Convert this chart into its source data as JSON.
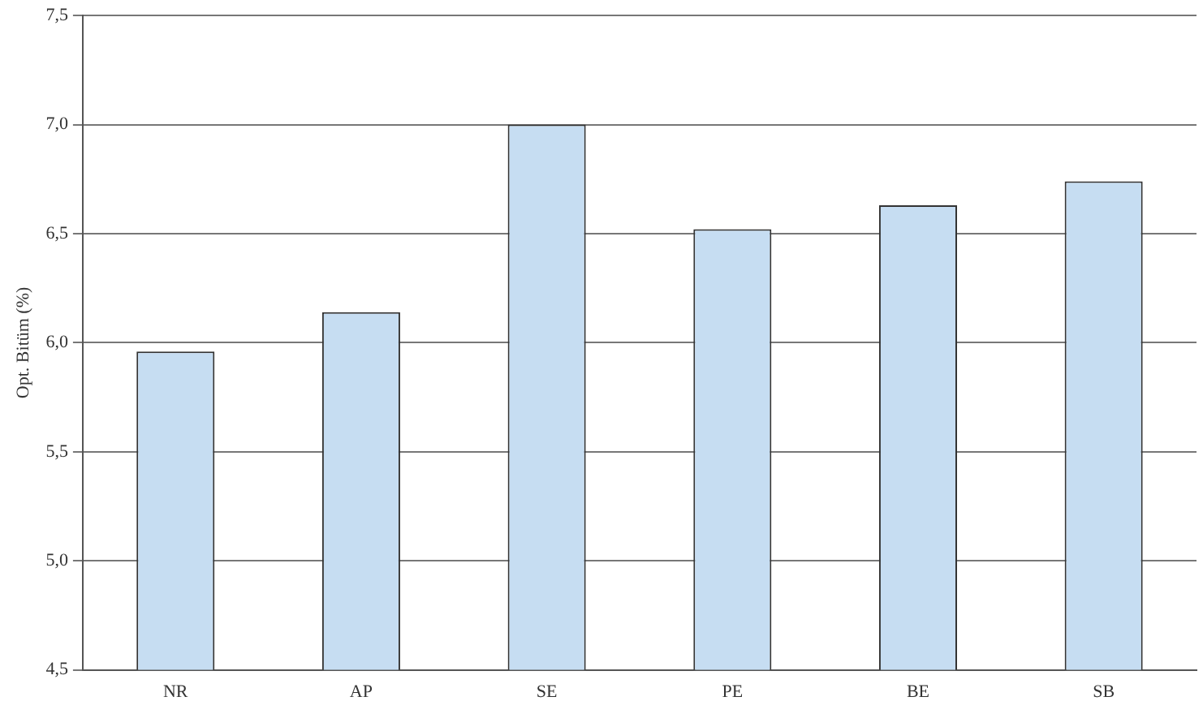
{
  "chart_data": {
    "type": "bar",
    "ylabel": "Opt. Bitüm (%)",
    "categories": [
      "NR",
      "AP",
      "SE",
      "PE",
      "BE",
      "SB"
    ],
    "values": [
      5.96,
      6.14,
      7.0,
      6.52,
      6.63,
      6.74
    ],
    "color": "#c6ddf2",
    "ylim": [
      4.5,
      7.5
    ],
    "yticks": [
      {
        "value": 4.5,
        "label": "4,5"
      },
      {
        "value": 5.0,
        "label": "5,0"
      },
      {
        "value": 5.5,
        "label": "5,5"
      },
      {
        "value": 6.0,
        "label": "6,0"
      },
      {
        "value": 6.5,
        "label": "6,5"
      },
      {
        "value": 7.0,
        "label": "7,0"
      },
      {
        "value": 7.5,
        "label": "7,5"
      }
    ],
    "grid": "y",
    "legend": false
  }
}
